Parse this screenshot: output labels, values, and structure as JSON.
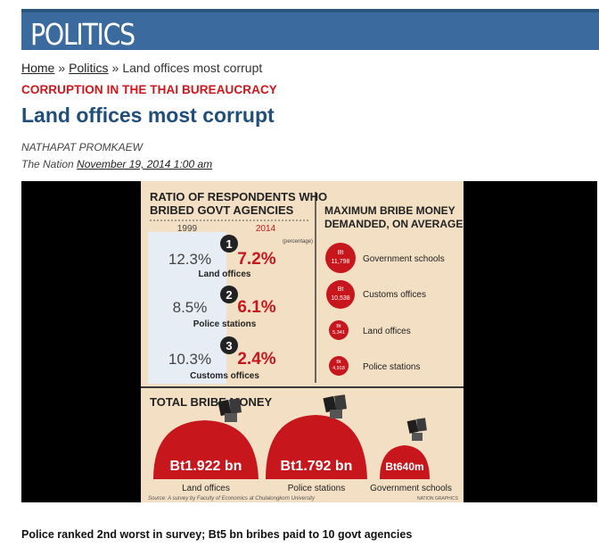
{
  "section": {
    "label": "POLITICS"
  },
  "breadcrumb": {
    "home": "Home",
    "sep1": "»",
    "section": "Politics",
    "sep2": "»",
    "current": "Land offices most corrupt"
  },
  "article": {
    "kicker": "CORRUPTION IN THE THAI BUREAUCRACY",
    "headline": "Land offices most corrupt",
    "author": "NATHAPAT PROMKAEW",
    "outlet": "The Nation",
    "date": "November 19, 2014 1:00 am",
    "summary": "Police ranked 2nd worst in survey; Bt5 bn bribes paid to 10 govt agencies"
  },
  "infographic": {
    "ratio_title_1": "RATIO OF RESPONDENTS WHO",
    "ratio_title_2": "BRIBED GOVT AGENCIES",
    "year_old": "1999",
    "year_new": "2014",
    "unit": "(percentage)",
    "ratio_rows": [
      {
        "rank": "1",
        "old": "12.3%",
        "new": "7.2%",
        "agency": "Land offices"
      },
      {
        "rank": "2",
        "old": "8.5%",
        "new": "6.1%",
        "agency": "Police stations"
      },
      {
        "rank": "3",
        "old": "10.3%",
        "new": "2.4%",
        "agency": "Customs offices"
      }
    ],
    "max_title_1": "MAXIMUM BRIBE MONEY",
    "max_title_2": "DEMANDED, ON AVERAGE",
    "max_rows": [
      {
        "amount_prefix": "Bt",
        "amount": "11,798",
        "agency": "Government schools"
      },
      {
        "amount_prefix": "Bt",
        "amount": "10,538",
        "agency": "Customs offices"
      },
      {
        "amount_prefix": "Bt",
        "amount": "5,341",
        "agency": "Land offices"
      },
      {
        "amount_prefix": "Bt",
        "amount": "4,918",
        "agency": "Police stations"
      }
    ],
    "total_title": "TOTAL BRIBE MONEY",
    "totals": [
      {
        "amount": "Bt1.922 bn",
        "agency": "Land offices"
      },
      {
        "amount": "Bt1.792 bn",
        "agency": "Police stations"
      },
      {
        "amount": "Bt640m",
        "agency": "Government schools"
      }
    ],
    "source": "Source: A survey by Faculty of Economics at Chulalongkorn University",
    "credit": "NATION GRAPHICS",
    "colors": {
      "red": "#c8161d",
      "dark": "#222222",
      "panel": "#f3dfc4",
      "highlight": "#ffffff"
    }
  }
}
